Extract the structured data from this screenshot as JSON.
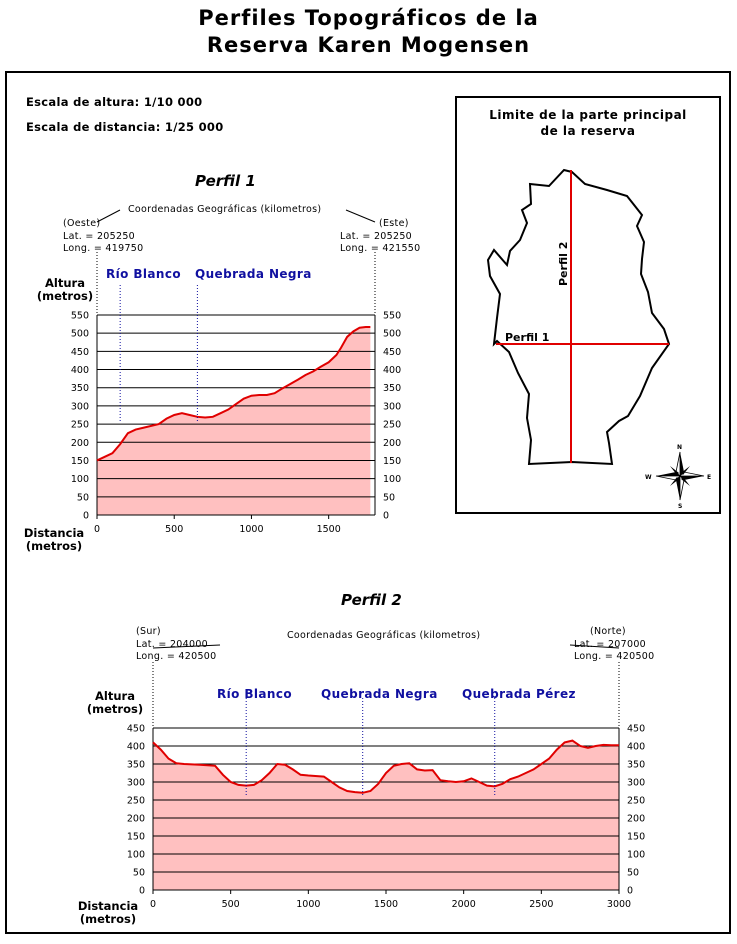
{
  "title_line1": "Perfiles Topográficos de la",
  "title_line2": "Reserva Karen Mogensen",
  "scale_height": "Escala de altura:  1/10 000",
  "scale_distance": "Escala de distancia:  1/25 000",
  "profile1": {
    "title": "Perfil 1",
    "coords_label": "Coordenadas Geográficas (kilometros)",
    "left_dir": "(Oeste)",
    "left_lat": "Lat. = 205250",
    "left_long": "Long. = 419750",
    "right_dir": "(Este)",
    "right_lat": "Lat. = 205250",
    "right_long": "Long. = 421550",
    "river1": "Río Blanco",
    "river2": "Quebrada Negra",
    "ylabel": "Altura\n(metros)",
    "xlabel": "Distancia\n(metros)"
  },
  "profile2": {
    "title": "Perfil 2",
    "coords_label": "Coordenadas Geográficas (kilometros)",
    "left_dir": "(Sur)",
    "left_lat": "Lat. = 204000",
    "left_long": "Long. = 420500",
    "right_dir": "(Norte)",
    "right_lat": "Lat. = 207000",
    "right_long": "Long. = 420500",
    "river1": "Río Blanco",
    "river2": "Quebrada Negra",
    "river3": "Quebrada Pérez",
    "ylabel": "Altura\n(metros)",
    "xlabel": "Distancia\n(metros)"
  },
  "map": {
    "title": "Limite de la parte principal\nde la reserva",
    "label_perfil1": "Perfil 1",
    "label_perfil2": "Perfil 2",
    "compass": {
      "n": "N",
      "s": "S",
      "e": "E",
      "w": "W"
    }
  },
  "colors": {
    "fill": "#ffc0c0",
    "line": "#e00000",
    "river_text": "#1010a0",
    "map_line": "#e00000"
  },
  "chart_data": [
    {
      "type": "area",
      "title": "Perfil 1",
      "xlabel": "Distancia (metros)",
      "ylabel": "Altura (metros)",
      "xlim": [
        0,
        1800
      ],
      "ylim": [
        0,
        550
      ],
      "xticks": [
        0,
        500,
        1000,
        1500
      ],
      "yticks": [
        0,
        50,
        100,
        150,
        200,
        250,
        300,
        350,
        400,
        450,
        500,
        550
      ],
      "markers": [
        {
          "label": "Río Blanco",
          "x": 150
        },
        {
          "label": "Quebrada Negra",
          "x": 650
        }
      ],
      "x": [
        0,
        50,
        100,
        150,
        200,
        250,
        300,
        400,
        450,
        500,
        550,
        600,
        650,
        700,
        750,
        800,
        850,
        900,
        950,
        1000,
        1050,
        1100,
        1150,
        1200,
        1250,
        1300,
        1350,
        1400,
        1450,
        1500,
        1550,
        1580,
        1620,
        1660,
        1700,
        1740,
        1770
      ],
      "y": [
        150,
        160,
        170,
        195,
        225,
        235,
        240,
        250,
        265,
        275,
        280,
        275,
        270,
        268,
        270,
        280,
        290,
        305,
        320,
        328,
        330,
        330,
        335,
        348,
        360,
        372,
        385,
        395,
        408,
        420,
        440,
        460,
        490,
        505,
        515,
        517,
        517
      ]
    },
    {
      "type": "area",
      "title": "Perfil 2",
      "xlabel": "Distancia (metros)",
      "ylabel": "Altura (metros)",
      "xlim": [
        0,
        3000
      ],
      "ylim": [
        0,
        450
      ],
      "xticks": [
        0,
        500,
        1000,
        1500,
        2000,
        2500,
        3000
      ],
      "yticks": [
        0,
        50,
        100,
        150,
        200,
        250,
        300,
        350,
        400,
        450
      ],
      "markers": [
        {
          "label": "Río Blanco",
          "x": 600
        },
        {
          "label": "Quebrada Negra",
          "x": 1350
        },
        {
          "label": "Quebrada Pérez",
          "x": 2200
        }
      ],
      "x": [
        0,
        50,
        100,
        150,
        200,
        300,
        400,
        450,
        500,
        550,
        600,
        650,
        700,
        750,
        800,
        850,
        900,
        950,
        1000,
        1100,
        1150,
        1200,
        1250,
        1300,
        1350,
        1400,
        1450,
        1500,
        1550,
        1600,
        1650,
        1700,
        1750,
        1800,
        1850,
        1900,
        1950,
        2000,
        2050,
        2100,
        2150,
        2200,
        2250,
        2300,
        2350,
        2400,
        2450,
        2500,
        2550,
        2600,
        2650,
        2700,
        2750,
        2800,
        2850,
        2900,
        2950,
        3000
      ],
      "y": [
        410,
        390,
        365,
        352,
        350,
        348,
        345,
        320,
        300,
        292,
        290,
        292,
        305,
        325,
        350,
        348,
        335,
        320,
        318,
        315,
        300,
        285,
        275,
        272,
        270,
        275,
        295,
        325,
        345,
        350,
        352,
        335,
        332,
        333,
        305,
        302,
        300,
        302,
        310,
        300,
        290,
        288,
        295,
        308,
        315,
        325,
        335,
        350,
        365,
        390,
        410,
        415,
        400,
        395,
        400,
        403,
        402,
        402
      ]
    }
  ]
}
